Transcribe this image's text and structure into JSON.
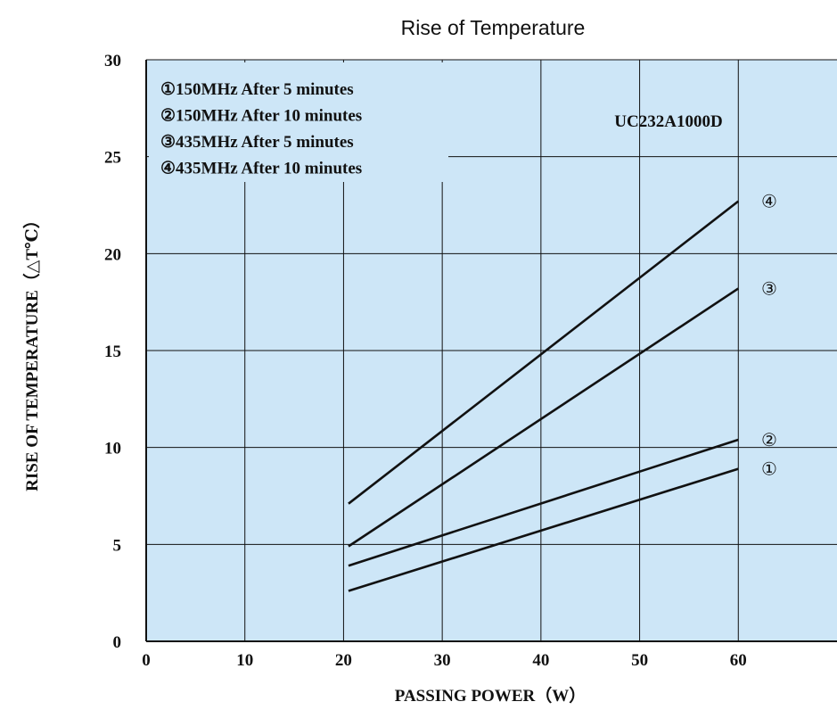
{
  "chart_data": {
    "type": "line",
    "title": "Rise of Temperature",
    "xlabel": "PASSING POWER（W）",
    "ylabel": "RISE OF TEMPERATURE（△T℃）",
    "annotation": "UC232A1000D",
    "xlim": [
      0,
      70
    ],
    "ylim": [
      0,
      30
    ],
    "x_ticks": [
      0,
      10,
      20,
      30,
      40,
      50,
      60
    ],
    "y_ticks": [
      0,
      5,
      10,
      15,
      20,
      25,
      30
    ],
    "grid": true,
    "legend_position": "top-left",
    "series": [
      {
        "name": "①150MHz After 5 minutes",
        "marker": "①",
        "x": [
          20.5,
          60
        ],
        "y": [
          2.6,
          8.9
        ]
      },
      {
        "name": "②150MHz After 10 minutes",
        "marker": "②",
        "x": [
          20.5,
          60
        ],
        "y": [
          3.9,
          10.4
        ]
      },
      {
        "name": "③435MHz After 5 minutes",
        "marker": "③",
        "x": [
          20.5,
          60
        ],
        "y": [
          4.9,
          18.2
        ]
      },
      {
        "name": "④435MHz After 10 minutes",
        "marker": "④",
        "x": [
          20.5,
          60
        ],
        "y": [
          7.1,
          22.7
        ]
      }
    ],
    "colors": {
      "plot_bg": "#cde6f7",
      "line": "#111111",
      "grid": "#111111"
    }
  }
}
